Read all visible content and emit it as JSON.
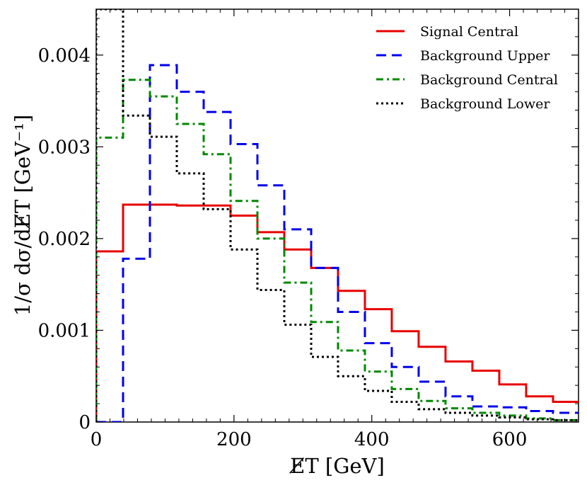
{
  "chart_data": {
    "type": "line",
    "step": true,
    "xlabel": "E̸T [GeV]",
    "ylabel": "1/σ dσ/dE̸T [GeV⁻¹]",
    "xlim": [
      0,
      700
    ],
    "ylim": [
      0,
      0.0045
    ],
    "x_ticks": [
      0,
      200,
      400,
      600
    ],
    "x_tick_labels": [
      "0",
      "200",
      "400",
      "600"
    ],
    "y_ticks": [
      0,
      0.001,
      0.002,
      0.003,
      0.004
    ],
    "y_tick_labels": [
      "0",
      "0.001",
      "0.002",
      "0.003",
      "0.004"
    ],
    "bin_edges": [
      0,
      39,
      78,
      117,
      156,
      195,
      234,
      273,
      312,
      351,
      390,
      429,
      468,
      507,
      546,
      585,
      624,
      663,
      702
    ],
    "grid": false,
    "legend_position": "top-right",
    "series": [
      {
        "name": "Signal Central",
        "color": "#e80000",
        "style": "solid",
        "values": [
          0.00186,
          0.00237,
          0.00237,
          0.00236,
          0.00236,
          0.00225,
          0.00207,
          0.00188,
          0.00168,
          0.00143,
          0.00123,
          0.00099,
          0.00082,
          0.00066,
          0.00056,
          0.00041,
          0.00028,
          0.00022
        ]
      },
      {
        "name": "Background Upper",
        "color": "#0000ee",
        "style": "dashed",
        "values": [
          0.0,
          0.00178,
          0.00389,
          0.0036,
          0.00338,
          0.00303,
          0.00258,
          0.0021,
          0.00168,
          0.0012,
          0.00086,
          0.0006,
          0.00044,
          0.00028,
          0.00017,
          0.00016,
          0.00012,
          0.0001
        ]
      },
      {
        "name": "Background Central",
        "color": "#008800",
        "style": "dashdot",
        "values": [
          0.0031,
          0.00373,
          0.00355,
          0.00325,
          0.00292,
          0.00241,
          0.002,
          0.00152,
          0.00109,
          0.00078,
          0.00055,
          0.00036,
          0.00023,
          0.00015,
          0.0001,
          7e-05,
          4e-05,
          2e-05
        ]
      },
      {
        "name": "Background Lower",
        "color": "#000000",
        "style": "dotted",
        "values": [
          0.0045,
          0.00334,
          0.00311,
          0.00271,
          0.00232,
          0.00188,
          0.00144,
          0.00106,
          0.00071,
          0.0005,
          0.00034,
          0.00022,
          0.00014,
          0.0001,
          7e-05,
          5e-05,
          3e-05,
          2e-05
        ]
      }
    ]
  }
}
